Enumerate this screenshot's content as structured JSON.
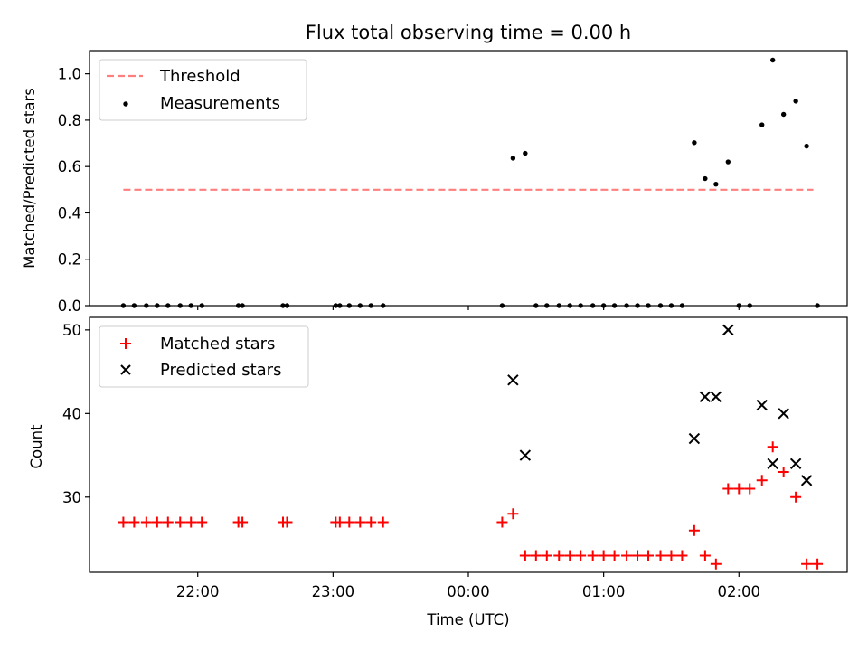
{
  "title": "Flux total observing time = 0.00 h",
  "chart_data": [
    {
      "type": "scatter",
      "panel": "top",
      "ylabel": "Matched/Predicted stars",
      "ylim": [
        0,
        1.1
      ],
      "yticks": [
        "0.0",
        "0.2",
        "0.4",
        "0.6",
        "0.8",
        "1.0"
      ],
      "grid": false,
      "legend": "top-left",
      "threshold": {
        "name": "Threshold",
        "value": 0.5,
        "x": [
          21.45,
          2.55
        ],
        "color": "#ff7f7f",
        "style": "dashed"
      },
      "series": [
        {
          "name": "Measurements",
          "color": "#000000",
          "x": [
            21.45,
            21.53,
            21.62,
            21.7,
            21.78,
            21.87,
            21.95,
            22.03,
            22.3,
            22.33,
            22.63,
            22.66,
            23.02,
            23.05,
            23.12,
            23.2,
            23.28,
            23.37,
            0.25,
            0.33,
            0.42,
            0.5,
            0.58,
            0.67,
            0.75,
            0.83,
            0.92,
            1.0,
            1.08,
            1.17,
            1.25,
            1.33,
            1.42,
            1.5,
            1.58,
            1.67,
            1.75,
            1.83,
            1.92,
            2.0,
            2.08,
            2.17,
            2.25,
            2.33,
            2.42,
            2.5,
            2.58
          ],
          "y": [
            0,
            0,
            0,
            0,
            0,
            0,
            0,
            0,
            0,
            0,
            0,
            0,
            0,
            0,
            0,
            0,
            0,
            0,
            0,
            0.636,
            0.657,
            0,
            0,
            0,
            0,
            0,
            0,
            0,
            0,
            0,
            0,
            0,
            0,
            0,
            0,
            0.703,
            0.548,
            0.524,
            0.62,
            0,
            0,
            0.78,
            1.059,
            0.825,
            0.882,
            0.688,
            0
          ]
        }
      ]
    },
    {
      "type": "scatter",
      "panel": "bottom",
      "xlabel": "Time (UTC)",
      "ylabel": "Count",
      "ylim": [
        21,
        51.5
      ],
      "yticks": [
        "30",
        "40",
        "50"
      ],
      "xticks": [
        "22:00",
        "23:00",
        "00:00",
        "01:00",
        "02:00"
      ],
      "grid": false,
      "legend": "top-left",
      "series": [
        {
          "name": "Matched stars",
          "marker": "plus",
          "color": "#ff0000",
          "x": [
            21.45,
            21.53,
            21.62,
            21.7,
            21.78,
            21.87,
            21.95,
            22.03,
            22.3,
            22.33,
            22.63,
            22.66,
            23.02,
            23.05,
            23.12,
            23.2,
            23.28,
            23.37,
            0.25,
            0.33,
            0.42,
            0.5,
            0.58,
            0.67,
            0.75,
            0.83,
            0.92,
            1.0,
            1.08,
            1.17,
            1.25,
            1.33,
            1.42,
            1.5,
            1.58,
            1.67,
            1.75,
            1.83,
            1.92,
            2.0,
            2.08,
            2.17,
            2.25,
            2.33,
            2.42,
            2.5,
            2.58
          ],
          "y": [
            27,
            27,
            27,
            27,
            27,
            27,
            27,
            27,
            27,
            27,
            27,
            27,
            27,
            27,
            27,
            27,
            27,
            27,
            27,
            28,
            23,
            23,
            23,
            23,
            23,
            23,
            23,
            23,
            23,
            23,
            23,
            23,
            23,
            23,
            23,
            26,
            23,
            22,
            31,
            31,
            31,
            32,
            36,
            33,
            30,
            22,
            22
          ]
        },
        {
          "name": "Predicted stars",
          "marker": "x",
          "color": "#000000",
          "x": [
            0.33,
            0.42,
            1.67,
            1.75,
            1.83,
            1.92,
            2.17,
            2.25,
            2.33,
            2.42,
            2.5
          ],
          "y": [
            44,
            35,
            37,
            42,
            42,
            50,
            41,
            34,
            40,
            34,
            32
          ]
        }
      ]
    }
  ]
}
